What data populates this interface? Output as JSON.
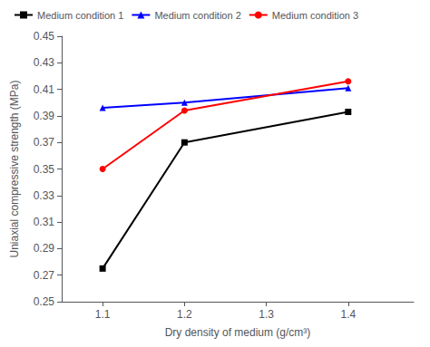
{
  "chart_data": {
    "type": "line",
    "xlabel": "Dry density of medium (g/cm³)",
    "ylabel": "Uniaxial compressive strength (MPa)",
    "x": [
      1.1,
      1.2,
      1.4
    ],
    "series": [
      {
        "name": "Medium condition 1",
        "color": "#000000",
        "marker": "square",
        "line_style": "solid",
        "values": [
          0.275,
          0.37,
          0.393
        ]
      },
      {
        "name": "Medium condition 2",
        "color": "#0000ff",
        "marker": "triangle",
        "line_style": "solid",
        "values": [
          0.396,
          0.4,
          0.411
        ]
      },
      {
        "name": "Medium condition 3",
        "color": "#ff0000",
        "marker": "circle",
        "line_style": "solid",
        "values": [
          0.35,
          0.394,
          0.416
        ]
      }
    ],
    "xlim": [
      1.05,
      1.48
    ],
    "ylim": [
      0.25,
      0.45
    ],
    "xticks": [
      1.1,
      1.2,
      1.3,
      1.4
    ],
    "yticks": [
      0.25,
      0.27,
      0.29,
      0.31,
      0.33,
      0.35,
      0.37,
      0.39,
      0.41,
      0.43,
      0.45
    ],
    "grid": false,
    "legend": "upper left"
  }
}
